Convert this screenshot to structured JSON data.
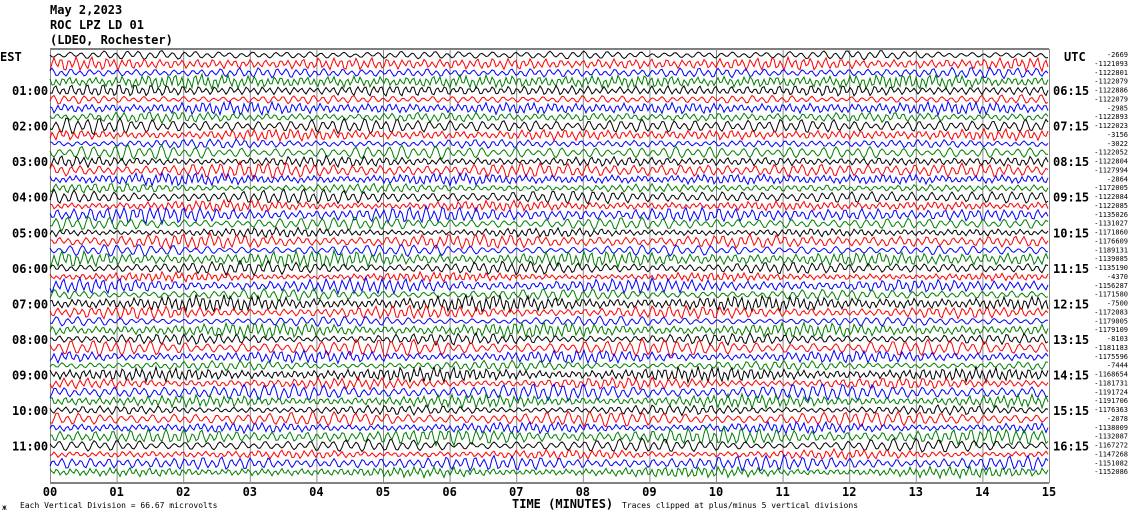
{
  "header": {
    "date": "May 2,2023",
    "station": "ROC LPZ LD 01",
    "network": "(LDEO, Rochester)"
  },
  "left_zone_label": "EST",
  "right_zone_label": "UTC",
  "footer": {
    "vertical_division": "Each Vertical Division =   66.67 microvolts",
    "clipping_note": "Traces clipped at plus/minus 5 vertical divisions",
    "small_mark": "ж"
  },
  "chart_data": {
    "type": "line",
    "xlabel": "TIME (MINUTES)",
    "x_ticks": [
      "00",
      "01",
      "02",
      "03",
      "04",
      "05",
      "06",
      "07",
      "08",
      "09",
      "10",
      "11",
      "12",
      "13",
      "14",
      "15"
    ],
    "xlim": [
      0,
      15
    ],
    "est_hours": [
      "01:00",
      "02:00",
      "03:00",
      "04:00",
      "05:00",
      "06:00",
      "07:00",
      "08:00",
      "09:00",
      "10:00",
      "11:00"
    ],
    "utc_hours": [
      "06:15",
      "07:15",
      "08:15",
      "09:15",
      "10:15",
      "11:15",
      "12:15",
      "13:15",
      "14:15",
      "15:15",
      "16:15"
    ],
    "trace_colors": [
      "#000000",
      "#ff0000",
      "#0000ff",
      "#007f00"
    ],
    "trace_count": 48,
    "right_values": [
      "-2669",
      "-1121093",
      "-1122801",
      "-1122079",
      "-1122886",
      "-1122079",
      "-2985",
      "-1122893",
      "-1122023",
      "-3156",
      "-3022",
      "-1122052",
      "-1122804",
      "-1127994",
      "-2864",
      "-1172005",
      "-1122084",
      "-1122085",
      "-1135026",
      "-1131027",
      "-1171860",
      "-1176609",
      "-1189131",
      "-1139085",
      "-1135190",
      "-4370",
      "-1156287",
      "-1171580",
      "-7500",
      "-1172083",
      "-1179005",
      "-1179109",
      "-8103",
      "-1181183",
      "-1175596",
      "-7444",
      "-1168654",
      "-1181731",
      "-1191724",
      "-1191706",
      "-1176363",
      "-2078",
      "-1138009",
      "-1132087",
      "-1167272",
      "-1147268",
      "-1151082",
      "-1152086"
    ]
  }
}
